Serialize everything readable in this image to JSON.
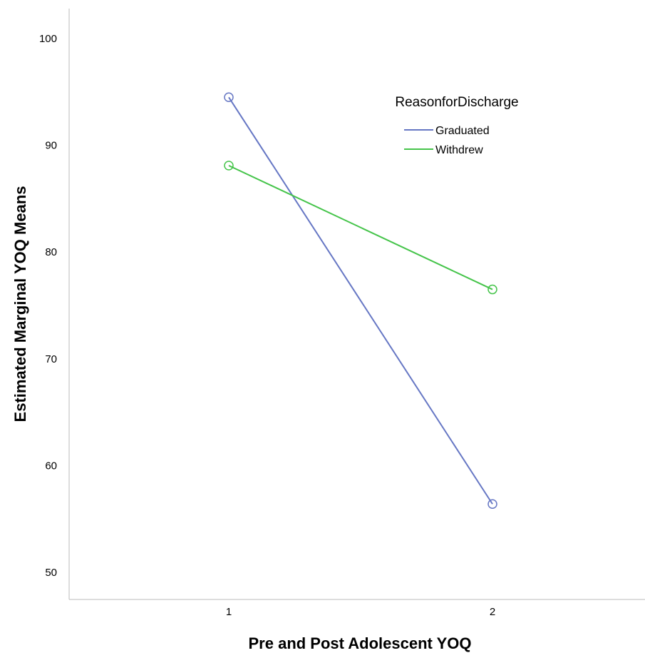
{
  "chart_data": {
    "type": "line",
    "title": "",
    "xlabel": "Pre and Post Adolescent YOQ",
    "ylabel": "Estimated Marginal YOQ Means",
    "categories": [
      "1",
      "2"
    ],
    "ylim": [
      48,
      102
    ],
    "yticks": [
      50,
      60,
      70,
      80,
      90,
      100
    ],
    "grid": false,
    "legend": {
      "title": "ReasonforDischarge",
      "placement": "top-right"
    },
    "series": [
      {
        "name": "Graduated",
        "color": "#6677c4",
        "values": [
          94.5,
          56.4
        ]
      },
      {
        "name": "Withdrew",
        "color": "#45c44a",
        "values": [
          88.1,
          76.5
        ]
      }
    ]
  }
}
